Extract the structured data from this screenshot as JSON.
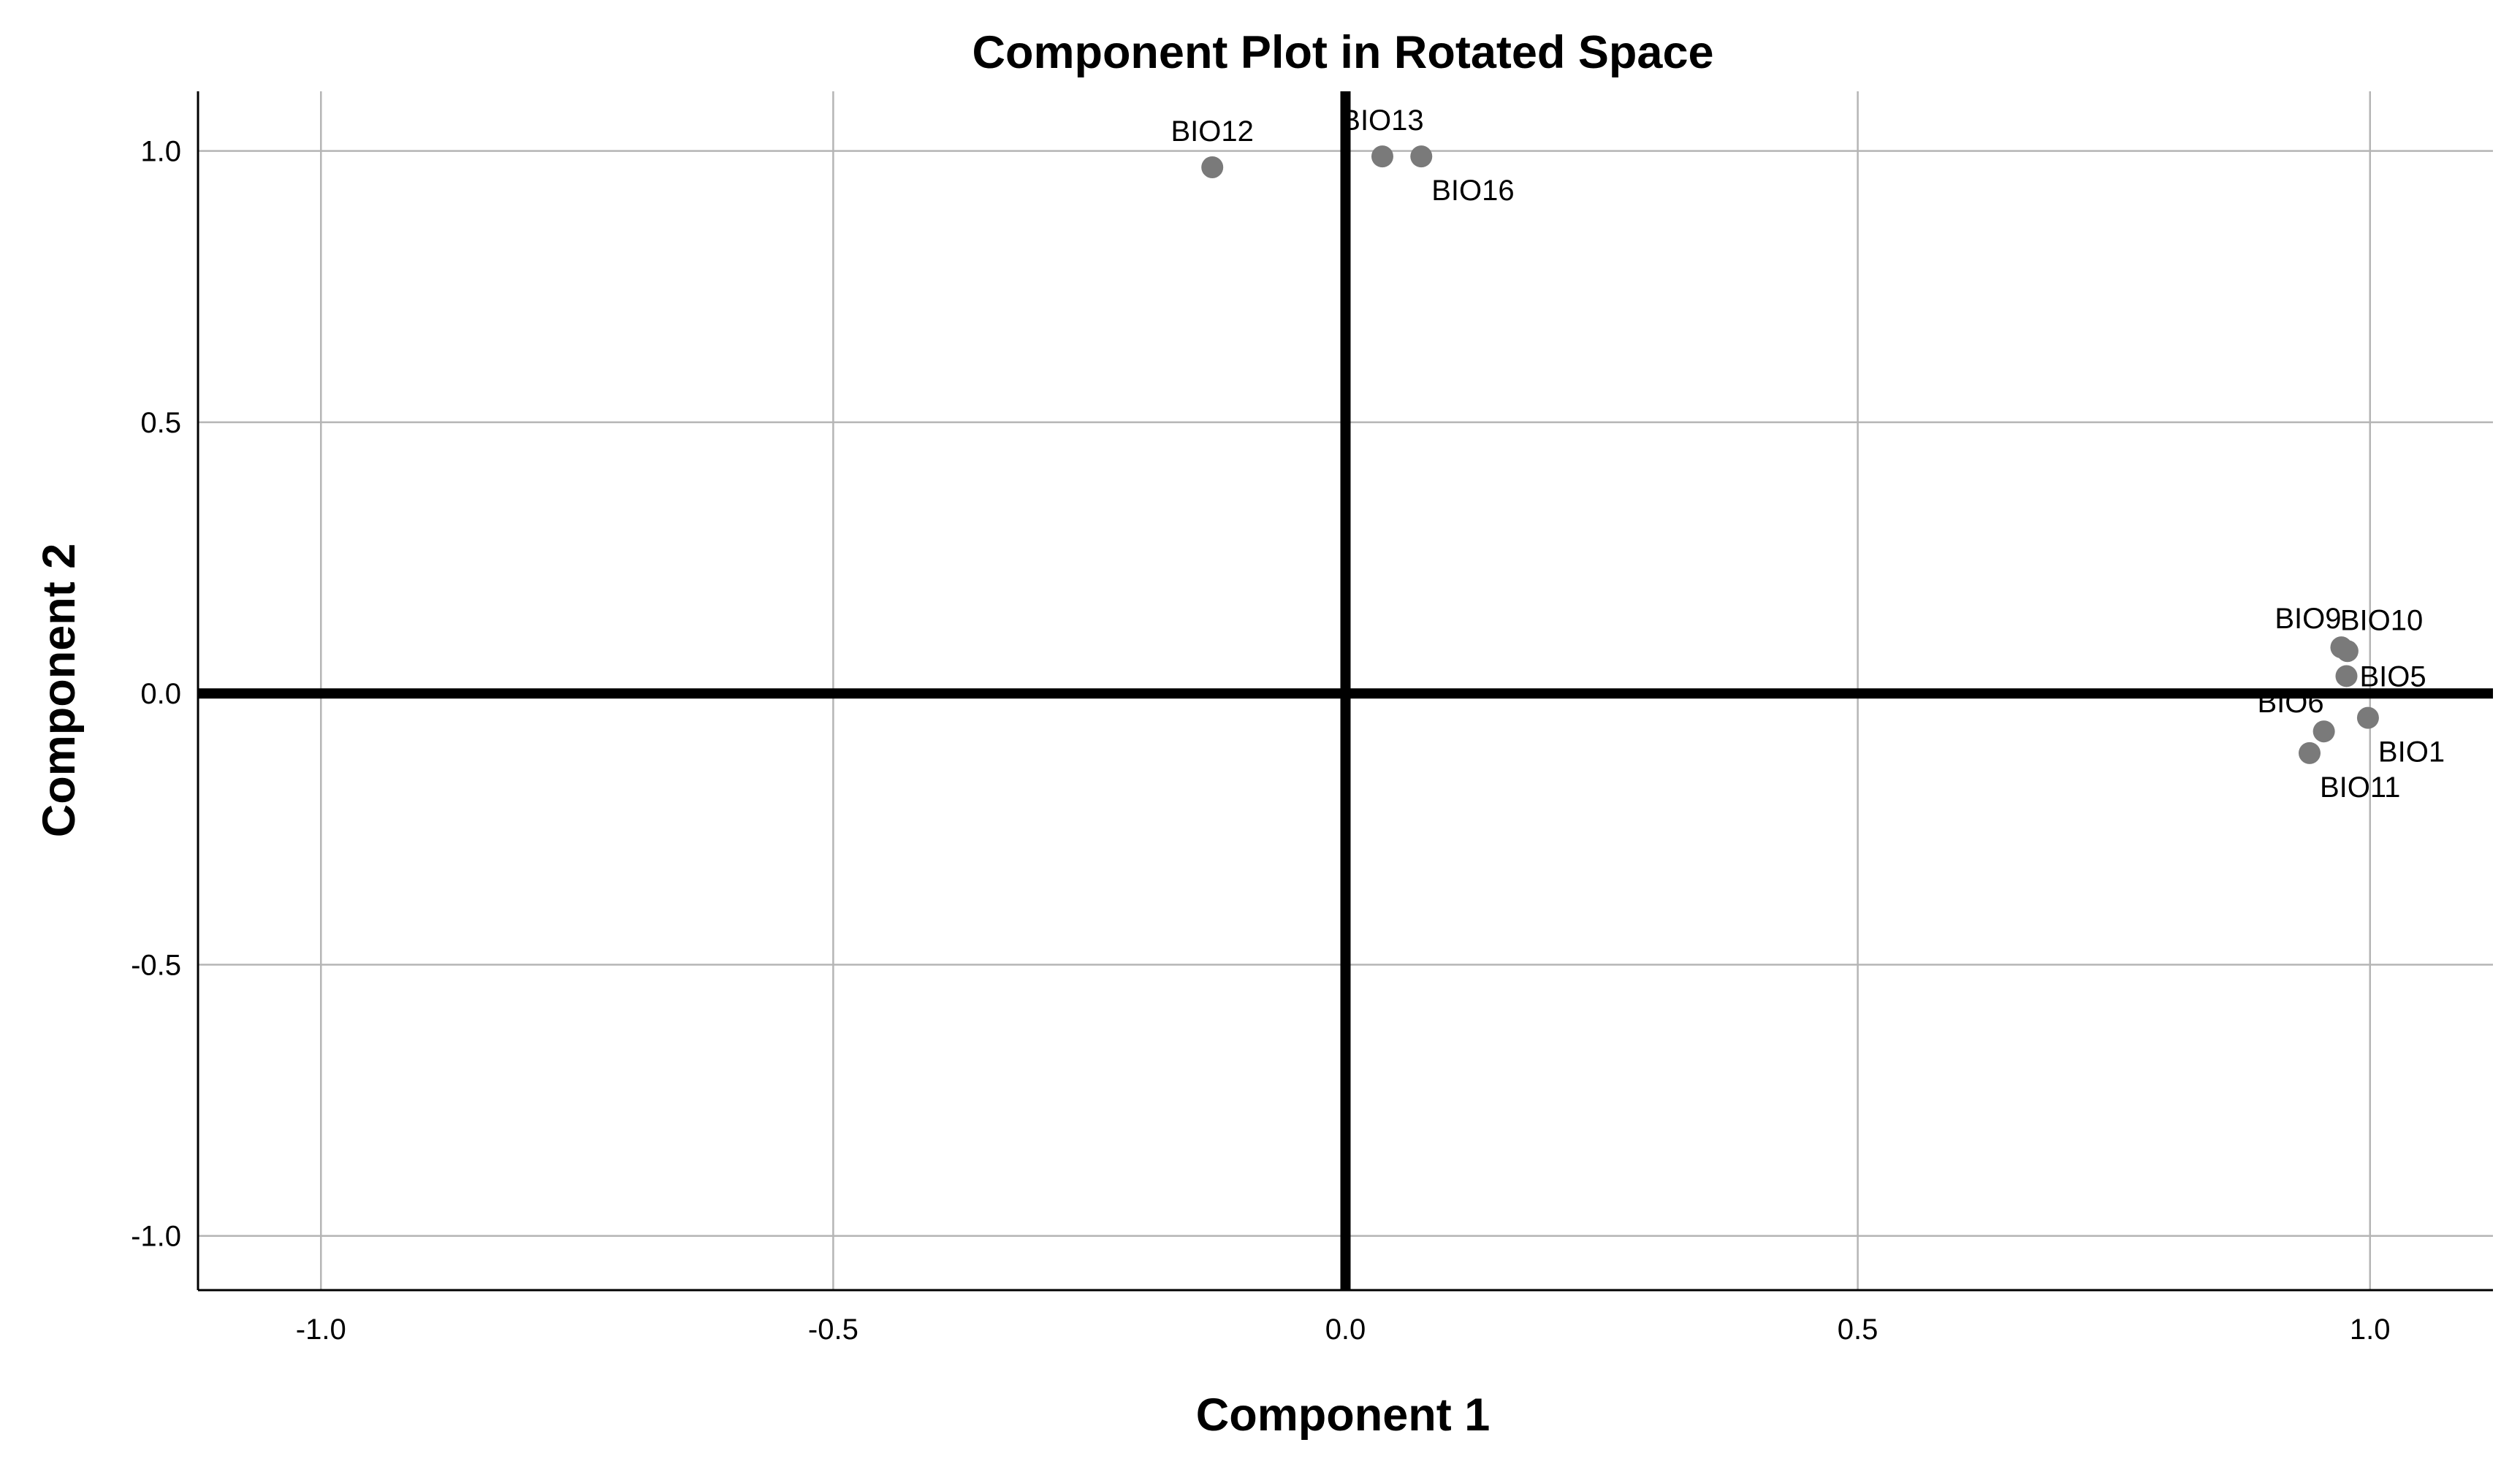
{
  "colors": {
    "point": "#7a7a7a",
    "grid": "#b5b5b5",
    "zero_line": "#000000",
    "background": "#ffffff"
  },
  "chart_data": {
    "type": "scatter",
    "title": "Component Plot in Rotated Space",
    "xlabel": "Component 1",
    "ylabel": "Component 2",
    "xlim": [
      -1.12,
      1.12
    ],
    "ylim": [
      -1.1,
      1.11
    ],
    "xticks": [
      -1.0,
      -0.5,
      0.0,
      0.5,
      1.0
    ],
    "yticks": [
      -1.0,
      -0.5,
      0.0,
      0.5,
      1.0
    ],
    "xtick_labels": [
      "-1.0",
      "-0.5",
      "0.0",
      "0.5",
      "1.0"
    ],
    "ytick_labels": [
      "-1.0",
      "-0.5",
      "0.0",
      "0.5",
      "1.0"
    ],
    "grid": true,
    "reference_lines": {
      "x": 0,
      "y": 0
    },
    "points": [
      {
        "label": "BIO12",
        "x": -0.13,
        "y": 0.97,
        "label_pos": "above"
      },
      {
        "label": "BIO13",
        "x": 0.036,
        "y": 0.99,
        "label_pos": "above"
      },
      {
        "label": "BIO16",
        "x": 0.074,
        "y": 0.99,
        "label_pos": "below-right"
      },
      {
        "label": "BIO9",
        "x": 0.972,
        "y": 0.085,
        "label_pos": "above-left"
      },
      {
        "label": "BIO10",
        "x": 0.978,
        "y": 0.078,
        "label_pos": "above-right"
      },
      {
        "label": "BIO5",
        "x": 0.977,
        "y": 0.032,
        "label_pos": "right"
      },
      {
        "label": "BIO6",
        "x": 0.955,
        "y": -0.07,
        "label_pos": "above-left"
      },
      {
        "label": "BIO1",
        "x": 0.998,
        "y": -0.045,
        "label_pos": "below-right"
      },
      {
        "label": "BIO11",
        "x": 0.941,
        "y": -0.11,
        "label_pos": "below-right"
      }
    ]
  }
}
